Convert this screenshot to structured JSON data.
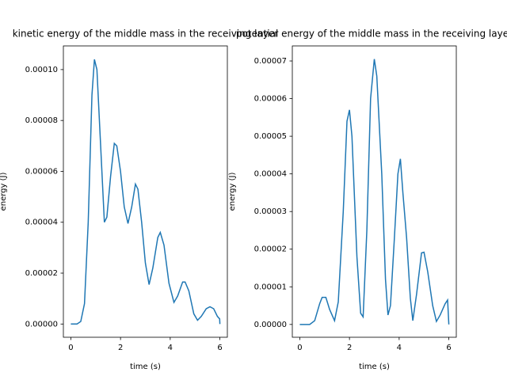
{
  "chart_data": [
    {
      "type": "line",
      "title": "kinetic energy of the middle mass in the receiving layer",
      "xlabel": "time (s)",
      "ylabel": "energy (J)",
      "x": [
        0,
        0.25,
        0.4,
        0.55,
        0.7,
        0.85,
        0.95,
        1.05,
        1.2,
        1.35,
        1.45,
        1.6,
        1.75,
        1.85,
        2.0,
        2.15,
        2.3,
        2.45,
        2.6,
        2.7,
        2.85,
        3.0,
        3.15,
        3.3,
        3.5,
        3.6,
        3.75,
        3.95,
        4.15,
        4.3,
        4.5,
        4.6,
        4.75,
        4.95,
        5.1,
        5.25,
        5.45,
        5.6,
        5.75,
        5.9,
        5.99,
        6.0
      ],
      "series": [
        {
          "color": "#1f77b4",
          "values": [
            0,
            0,
            1e-06,
            8e-06,
            4e-05,
            9e-05,
            0.000104,
            0.0001,
            7e-05,
            4e-05,
            4.2e-05,
            5.8e-05,
            7.1e-05,
            7e-05,
            6e-05,
            4.6e-05,
            3.95e-05,
            4.6e-05,
            5.5e-05,
            5.3e-05,
            4e-05,
            2.4e-05,
            1.55e-05,
            2.2e-05,
            3.4e-05,
            3.6e-05,
            3.1e-05,
            1.6e-05,
            8.5e-06,
            1.1e-05,
            1.65e-05,
            1.65e-05,
            1.3e-05,
            4e-06,
            1.5e-06,
            3e-06,
            6e-06,
            6.8e-06,
            6e-06,
            3e-06,
            2e-06,
            0
          ]
        }
      ],
      "xlim": [
        -0.3,
        6.3
      ],
      "xticks": [
        0,
        2,
        4,
        6
      ],
      "ylim": [
        -5.2e-06,
        0.0001093
      ],
      "yticks": [
        {
          "value": 0,
          "label": "0.00000"
        },
        {
          "value": 2e-05,
          "label": "0.00002"
        },
        {
          "value": 4e-05,
          "label": "0.00004"
        },
        {
          "value": 6e-05,
          "label": "0.00006"
        },
        {
          "value": 8e-05,
          "label": "0.00008"
        },
        {
          "value": 0.0001,
          "label": "0.00010"
        }
      ]
    },
    {
      "type": "line",
      "title": "potential energy of the middle mass in the receiving layer",
      "xlabel": "time (s)",
      "ylabel": "energy (J)",
      "x": [
        0,
        0.4,
        0.6,
        0.8,
        0.9,
        1.05,
        1.2,
        1.4,
        1.55,
        1.75,
        1.9,
        2.0,
        2.1,
        2.3,
        2.45,
        2.55,
        2.7,
        2.85,
        3.0,
        3.1,
        3.3,
        3.45,
        3.55,
        3.65,
        3.8,
        3.95,
        4.05,
        4.15,
        4.3,
        4.45,
        4.55,
        4.7,
        4.9,
        5.0,
        5.15,
        5.35,
        5.5,
        5.65,
        5.85,
        5.95,
        6.0
      ],
      "series": [
        {
          "color": "#1f77b4",
          "values": [
            0,
            0,
            1e-06,
            5.5e-06,
            7.2e-06,
            7.2e-06,
            4e-06,
            1e-06,
            6e-06,
            3e-05,
            5.4e-05,
            5.7e-05,
            5e-05,
            1.8e-05,
            3e-06,
            2e-06,
            2.5e-05,
            6e-05,
            7.05e-05,
            6.6e-05,
            4e-05,
            1.2e-05,
            2.5e-06,
            5e-06,
            2.2e-05,
            4e-05,
            4.4e-05,
            3.5e-05,
            2.3e-05,
            7e-06,
            1e-06,
            8e-06,
            1.9e-05,
            1.92e-05,
            1.4e-05,
            5e-06,
            8e-07,
            2.5e-06,
            5.5e-06,
            6.5e-06,
            0
          ]
        }
      ],
      "xlim": [
        -0.3,
        6.3
      ],
      "xticks": [
        0,
        2,
        4,
        6
      ],
      "ylim": [
        -3.4e-06,
        7.4e-05
      ],
      "yticks": [
        {
          "value": 0,
          "label": "0.00000"
        },
        {
          "value": 1e-05,
          "label": "0.00001"
        },
        {
          "value": 2e-05,
          "label": "0.00002"
        },
        {
          "value": 3e-05,
          "label": "0.00003"
        },
        {
          "value": 4e-05,
          "label": "0.00004"
        },
        {
          "value": 5e-05,
          "label": "0.00005"
        },
        {
          "value": 6e-05,
          "label": "0.00006"
        },
        {
          "value": 7e-05,
          "label": "0.00007"
        }
      ]
    }
  ]
}
